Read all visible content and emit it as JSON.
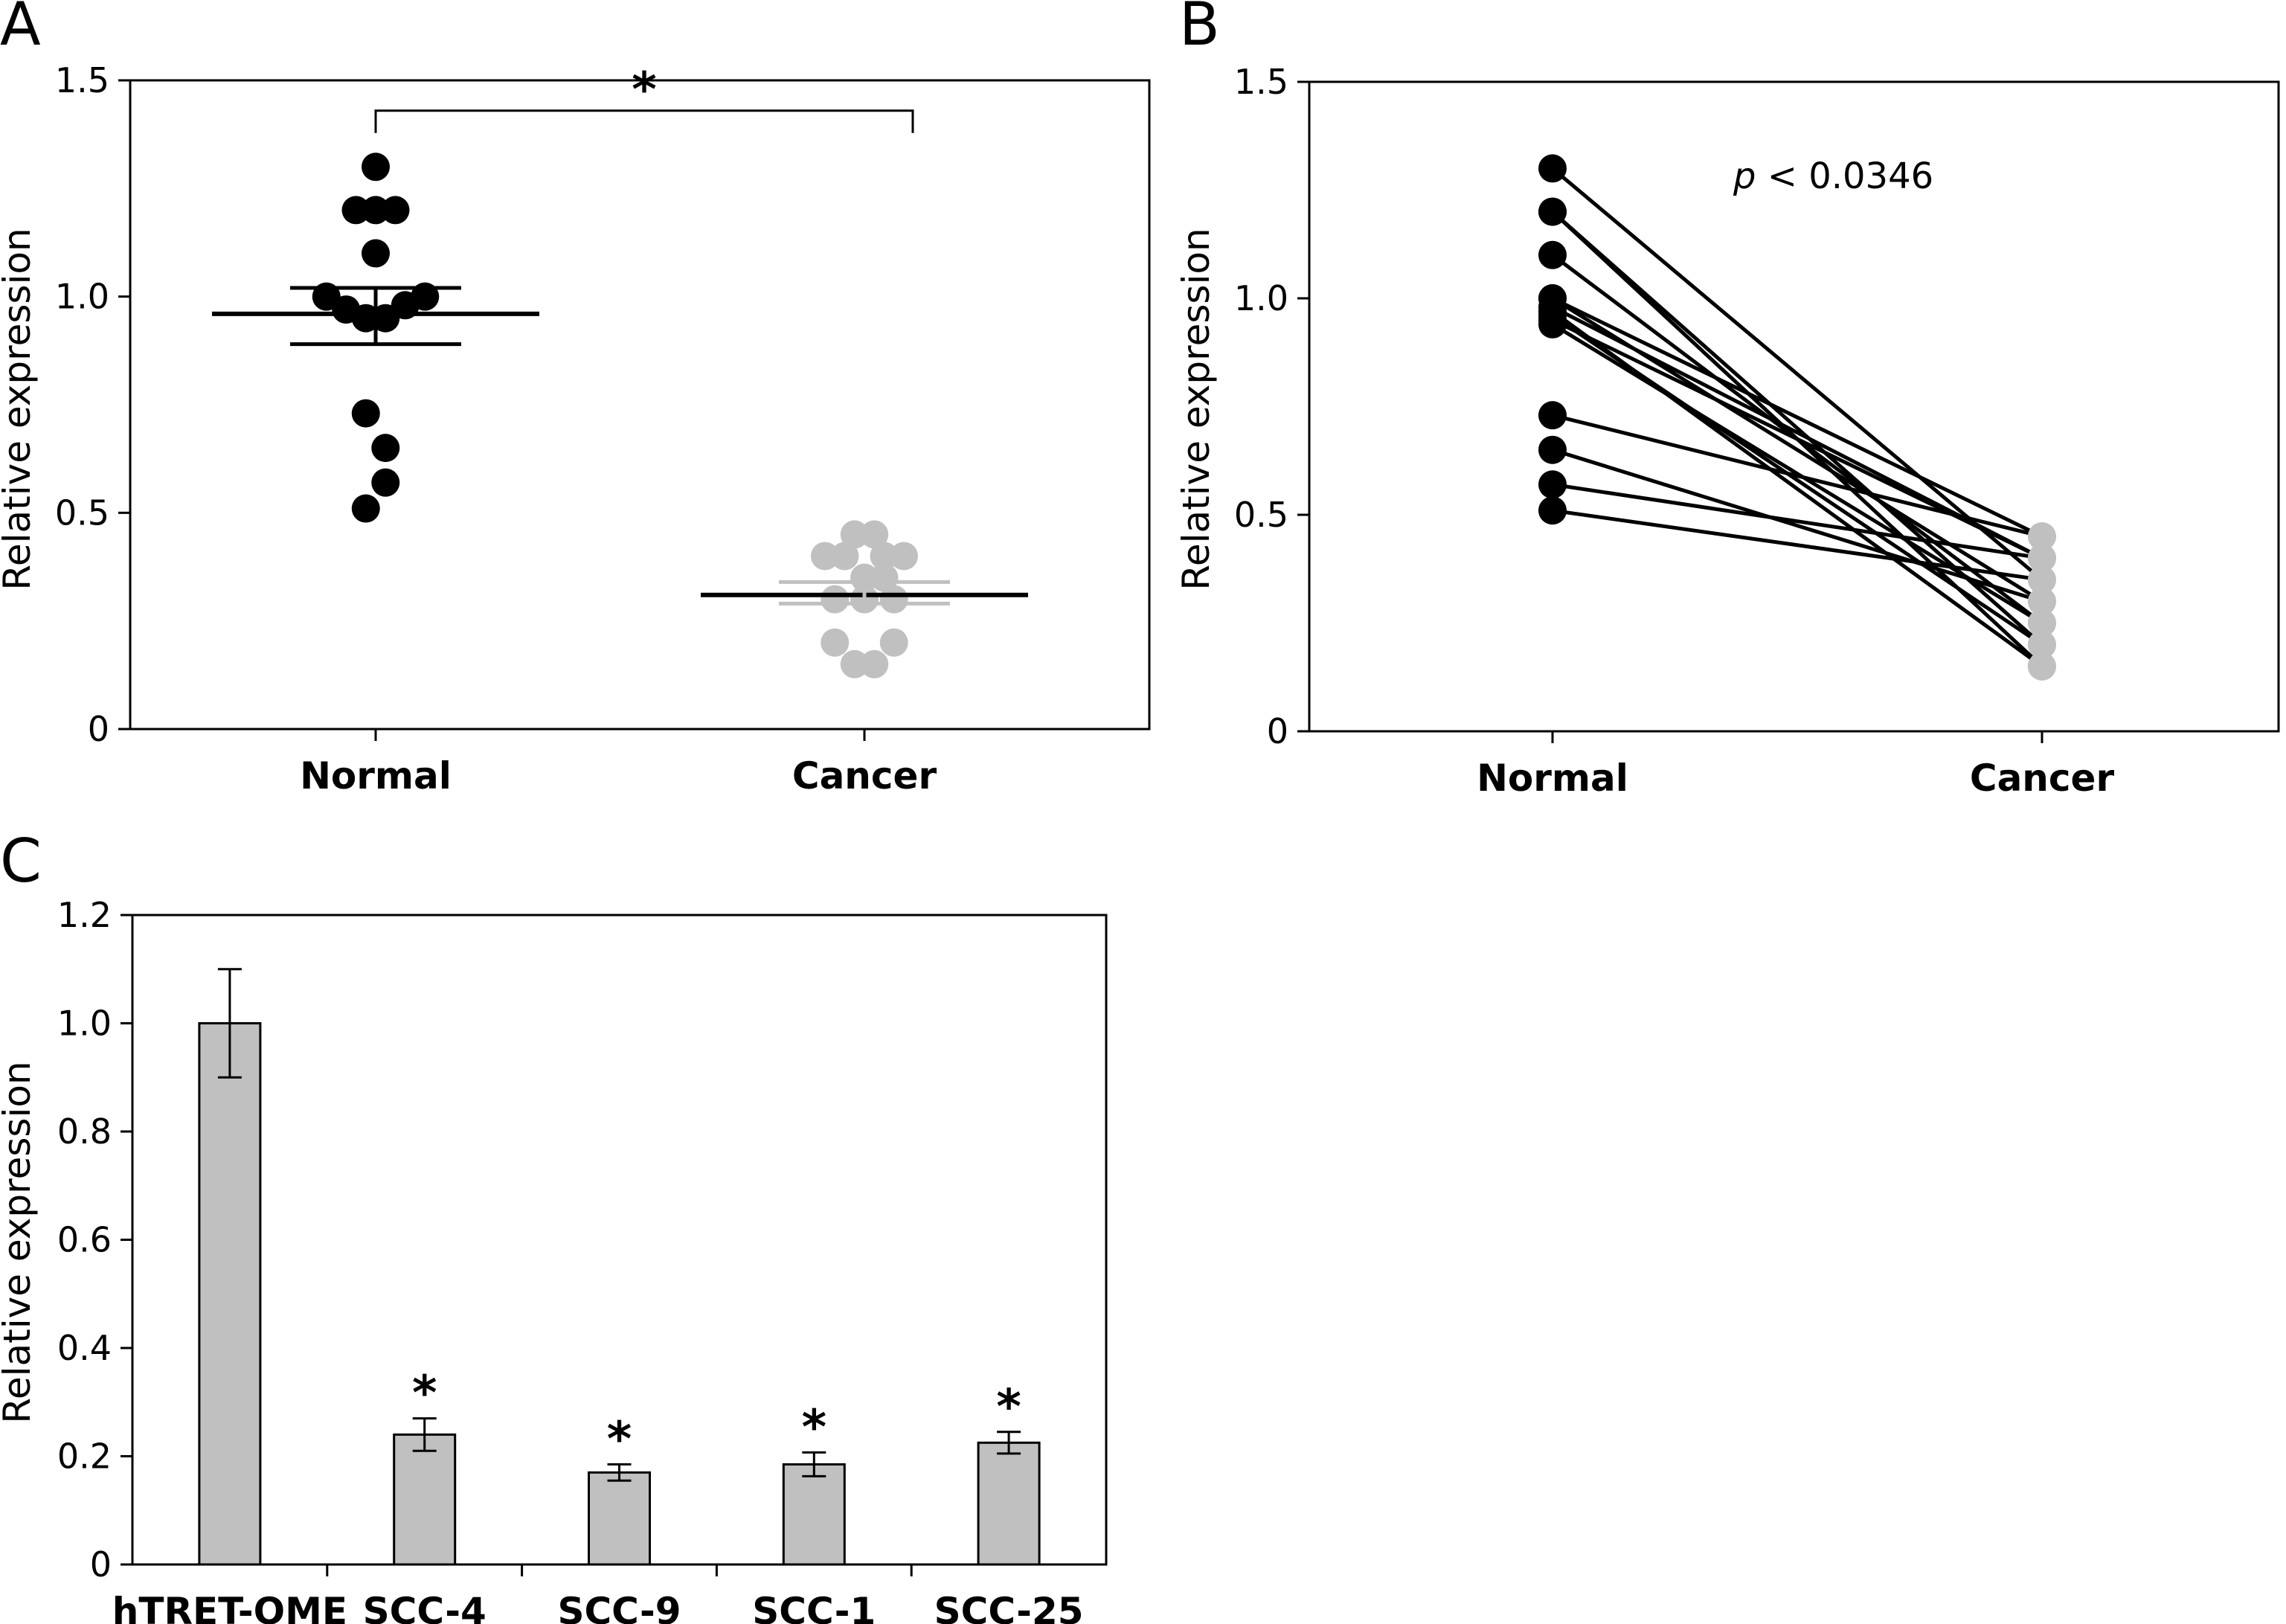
{
  "chart_data": [
    {
      "panel": "A",
      "type": "scatter",
      "ylabel": "Relative expression",
      "ylim": [
        0,
        1.5
      ],
      "yticks": [
        "0",
        "0.5",
        "1.0",
        "1.5"
      ],
      "categories": [
        "Normal",
        "Cancer"
      ],
      "series": [
        {
          "category": "Normal",
          "color": "#000000",
          "points": [
            {
              "x": 0,
              "y": 1.3
            },
            {
              "x": -0.1,
              "y": 1.2
            },
            {
              "x": 0,
              "y": 1.2
            },
            {
              "x": 0.1,
              "y": 1.2
            },
            {
              "x": 0,
              "y": 1.1
            },
            {
              "x": -0.25,
              "y": 1.0
            },
            {
              "x": 0.25,
              "y": 1.0
            },
            {
              "x": -0.15,
              "y": 0.97
            },
            {
              "x": 0.15,
              "y": 0.98
            },
            {
              "x": -0.05,
              "y": 0.95
            },
            {
              "x": 0.05,
              "y": 0.95
            },
            {
              "x": -0.05,
              "y": 0.73
            },
            {
              "x": 0.05,
              "y": 0.65
            },
            {
              "x": 0.05,
              "y": 0.57
            },
            {
              "x": -0.05,
              "y": 0.51
            }
          ],
          "mean": 0.96,
          "sem_low": 0.89,
          "sem_high": 1.02
        },
        {
          "category": "Cancer",
          "color": "#c0c0c0",
          "points": [
            {
              "x": -0.05,
              "y": 0.45
            },
            {
              "x": 0.05,
              "y": 0.45
            },
            {
              "x": -0.2,
              "y": 0.4
            },
            {
              "x": -0.1,
              "y": 0.4
            },
            {
              "x": 0.1,
              "y": 0.4
            },
            {
              "x": 0.2,
              "y": 0.4
            },
            {
              "x": 0,
              "y": 0.35
            },
            {
              "x": 0.1,
              "y": 0.35
            },
            {
              "x": -0.15,
              "y": 0.3
            },
            {
              "x": 0,
              "y": 0.3
            },
            {
              "x": 0.15,
              "y": 0.3
            },
            {
              "x": -0.15,
              "y": 0.2
            },
            {
              "x": 0.15,
              "y": 0.2
            },
            {
              "x": -0.05,
              "y": 0.15
            },
            {
              "x": 0.05,
              "y": 0.15
            }
          ],
          "mean": 0.31,
          "sem_low": 0.29,
          "sem_high": 0.34
        }
      ],
      "annotations": [
        {
          "text": "*",
          "type": "significance-bracket",
          "from": "Normal",
          "to": "Cancer",
          "y": 1.43
        }
      ]
    },
    {
      "panel": "B",
      "type": "line",
      "ylabel": "Relative expression",
      "ylim": [
        0,
        1.5
      ],
      "yticks": [
        "0",
        "0.5",
        "1.0",
        "1.5"
      ],
      "categories": [
        "Normal",
        "Cancer"
      ],
      "normal_color": "#000000",
      "cancer_color": "#c0c0c0",
      "pairs": [
        {
          "normal": 1.3,
          "cancer": 0.35
        },
        {
          "normal": 1.2,
          "cancer": 0.2
        },
        {
          "normal": 1.2,
          "cancer": 0.15
        },
        {
          "normal": 1.1,
          "cancer": 0.25
        },
        {
          "normal": 1.0,
          "cancer": 0.45
        },
        {
          "normal": 1.0,
          "cancer": 0.3
        },
        {
          "normal": 0.98,
          "cancer": 0.4
        },
        {
          "normal": 0.97,
          "cancer": 0.15
        },
        {
          "normal": 0.96,
          "cancer": 0.2
        },
        {
          "normal": 0.95,
          "cancer": 0.4
        },
        {
          "normal": 0.94,
          "cancer": 0.25
        },
        {
          "normal": 0.73,
          "cancer": 0.45
        },
        {
          "normal": 0.65,
          "cancer": 0.3
        },
        {
          "normal": 0.57,
          "cancer": 0.4
        },
        {
          "normal": 0.51,
          "cancer": 0.35
        }
      ],
      "annotation_p": "p",
      "annotation_value": " < 0.0346"
    },
    {
      "panel": "C",
      "type": "bar",
      "ylabel": "Relative expression",
      "ylim": [
        0,
        1.2
      ],
      "yticks": [
        "0",
        "0.2",
        "0.4",
        "0.6",
        "0.8",
        "1.0",
        "1.2"
      ],
      "categories": [
        "hTRET-OME",
        "SCC-4",
        "SCC-9",
        "SCC-1",
        "SCC-25"
      ],
      "values": [
        1.0,
        0.24,
        0.17,
        0.185,
        0.225
      ],
      "errors": [
        0.1,
        0.03,
        0.015,
        0.022,
        0.02
      ],
      "significance": [
        "",
        "*",
        "*",
        "*",
        "*"
      ],
      "bar_color": "#c0c0c0"
    }
  ]
}
